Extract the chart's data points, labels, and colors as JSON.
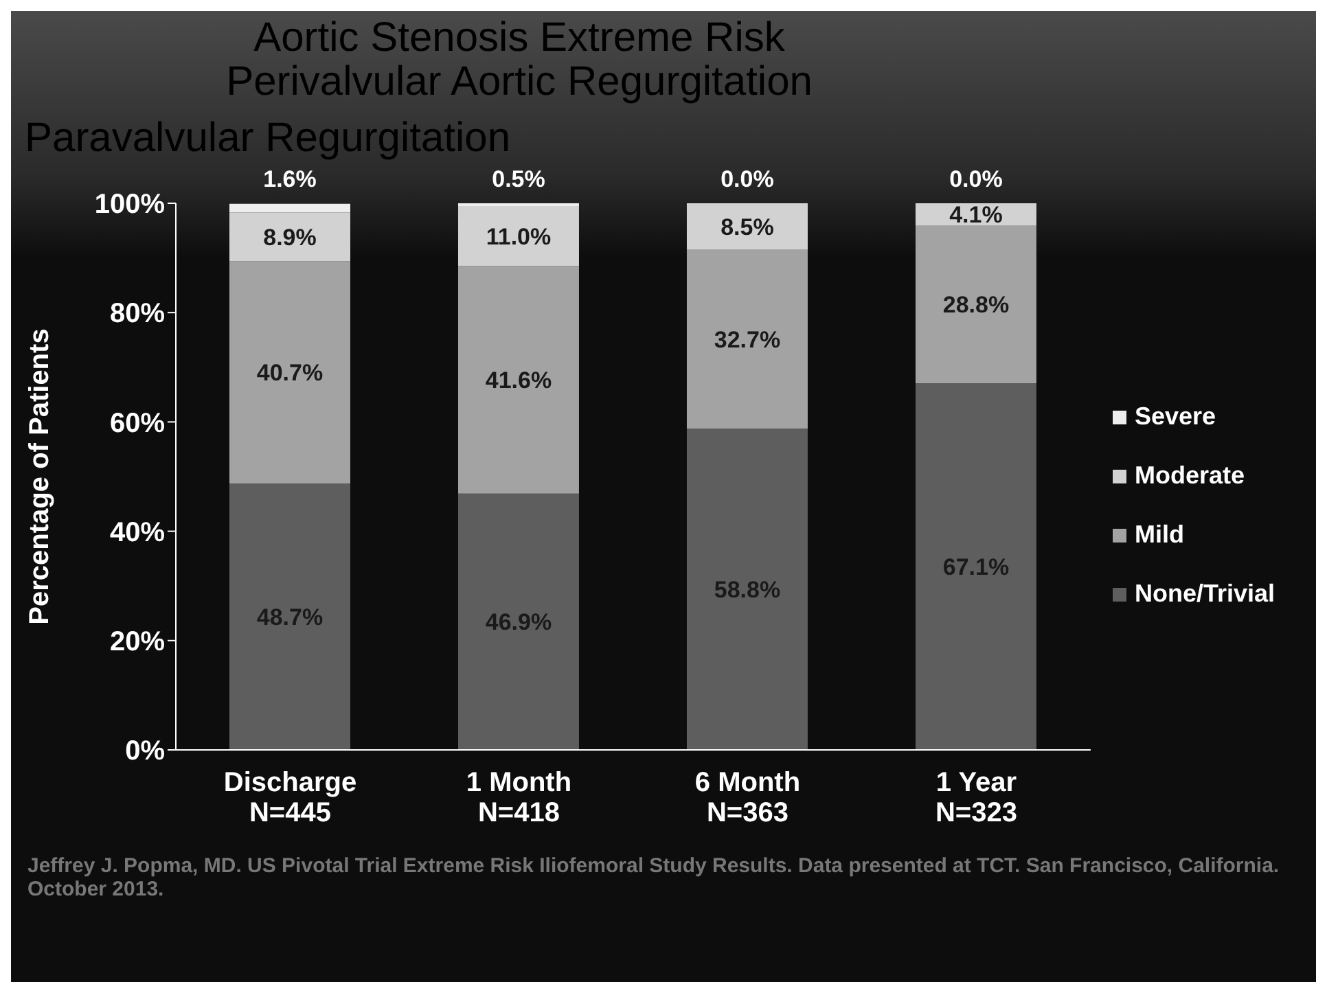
{
  "chart_data": {
    "type": "bar",
    "title": "Aortic Stenosis Extreme Risk",
    "subtitle": "Perivalvular Aortic Regurgitation",
    "categories": [
      "Discharge\nN=445",
      "1 Month\nN=418",
      "6 Month\nN=363",
      "1 Year\nN=323"
    ],
    "stacked": true,
    "ylabel": "Percentage of Patients",
    "ylim": [
      0,
      100
    ],
    "yticks": [
      {
        "value": 0,
        "label": "0%"
      },
      {
        "value": 20,
        "label": "20%"
      },
      {
        "value": 40,
        "label": "40%"
      },
      {
        "value": 60,
        "label": "60%"
      },
      {
        "value": 80,
        "label": "80%"
      },
      {
        "value": 100,
        "label": "100%"
      }
    ],
    "series": [
      {
        "name": "None/Trivial",
        "color": "#5e5e5e",
        "values": [
          48.7,
          46.9,
          58.8,
          67.1
        ],
        "value_labels": [
          "48.7%",
          "46.9%",
          "58.8%",
          "67.1%"
        ]
      },
      {
        "name": "Mild",
        "color": "#a3a3a3",
        "values": [
          40.7,
          41.6,
          32.7,
          28.8
        ],
        "value_labels": [
          "40.7%",
          "41.6%",
          "32.7%",
          "28.8%"
        ]
      },
      {
        "name": "Moderate",
        "color": "#d2d2d2",
        "values": [
          8.9,
          11.0,
          8.5,
          4.1
        ],
        "value_labels": [
          "8.9%",
          "11.0%",
          "8.5%",
          "4.1%"
        ]
      },
      {
        "name": "Severe",
        "color": "#ededed",
        "values": [
          1.6,
          0.5,
          0.0,
          0.0
        ],
        "value_labels": [
          "1.6%",
          "0.5%",
          "0.0%",
          "0.0%"
        ]
      }
    ],
    "legend": "right",
    "grid": false,
    "annotations": [
      "Paravalvular Regurgitation",
      "Jeffrey J. Popma, MD. US Pivotal Trial Extreme Risk Iliofemoral Study Results. Data presented at TCT. San Francisco, California. October 2013."
    ]
  }
}
